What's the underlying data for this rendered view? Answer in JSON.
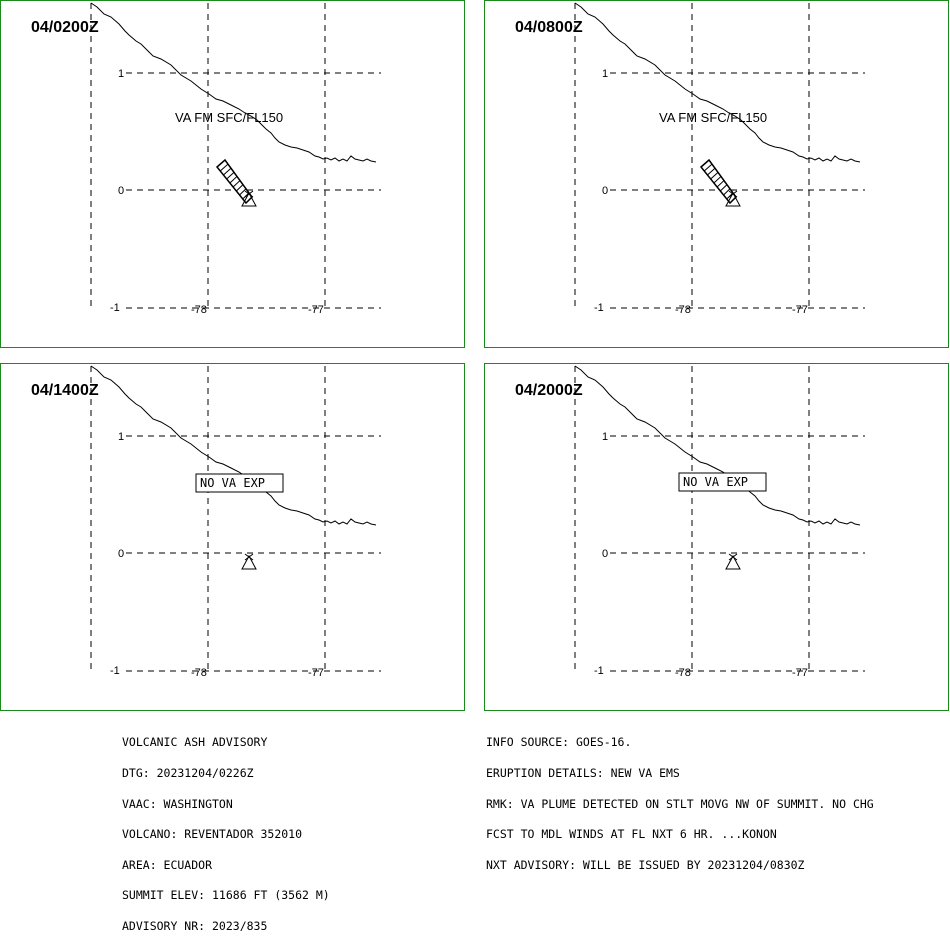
{
  "panels": [
    {
      "time": "04/0200Z",
      "plume": true,
      "label": "VA FM SFC/FL150",
      "boxed": false
    },
    {
      "time": "04/0800Z",
      "plume": true,
      "label": "VA FM SFC/FL150",
      "boxed": false
    },
    {
      "time": "04/1400Z",
      "plume": false,
      "label": "NO VA EXP",
      "boxed": true
    },
    {
      "time": "04/2000Z",
      "plume": false,
      "label": "NO VA EXP",
      "boxed": true
    }
  ],
  "axes": {
    "lat_labels": [
      "1",
      "0",
      "-1"
    ],
    "lon_labels": [
      "-78",
      "-77"
    ]
  },
  "advisory_left": [
    "VOLCANIC ASH ADVISORY",
    "DTG: 20231204/0226Z",
    "VAAC: WASHINGTON",
    "VOLCANO: REVENTADOR 352010",
    "AREA: ECUADOR",
    "SUMMIT ELEV: 11686 FT (3562 M)",
    "ADVISORY NR: 2023/835"
  ],
  "advisory_right": [
    "INFO SOURCE: GOES-16.",
    "ERUPTION DETAILS: NEW VA EMS",
    "RMK: VA PLUME DETECTED ON STLT MOVG NW OF SUMMIT. NO CHG",
    "FCST TO MDL WINDS AT FL NXT 6 HR. ...KONON",
    "NXT ADVISORY: WILL BE ISSUED BY 20231204/0830Z"
  ],
  "colors": {
    "frame": "#1a8a1a",
    "lines": "#000000"
  }
}
